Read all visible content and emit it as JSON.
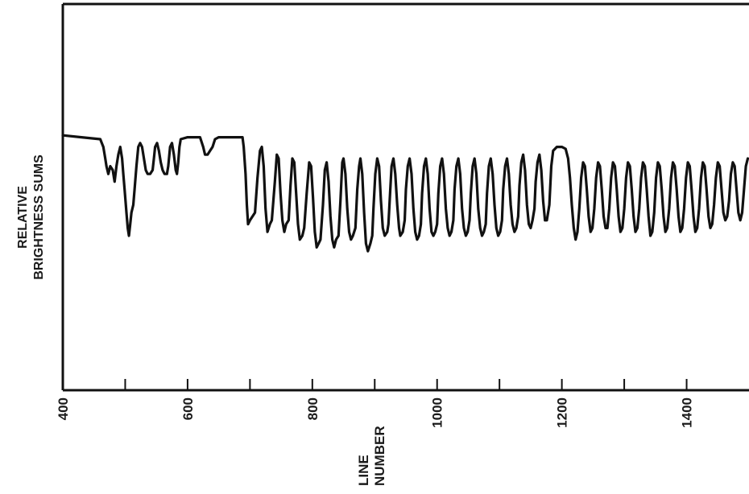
{
  "chart_data": {
    "type": "line",
    "title": "",
    "xlabel_lines": [
      "LINE",
      "NUMBER"
    ],
    "ylabel_lines": [
      "RELATIVE",
      "BRIGHTNESS SUMS"
    ],
    "xlim": [
      400,
      1500
    ],
    "ylim": [
      0,
      100
    ],
    "x_ticks": [
      400,
      500,
      600,
      700,
      800,
      900,
      1000,
      1100,
      1200,
      1300,
      1400,
      1500
    ],
    "x_tick_labels": [
      {
        "value": 400,
        "text": "400"
      },
      {
        "value": 600,
        "text": "600"
      },
      {
        "value": 800,
        "text": "800"
      },
      {
        "value": 1000,
        "text": "1000"
      },
      {
        "value": 1200,
        "text": "1200"
      },
      {
        "value": 1400,
        "text": "1400"
      }
    ],
    "y_tick_labels": [],
    "grid": false,
    "line_color": "#111111",
    "series": [
      {
        "points": [
          [
            400,
            66
          ],
          [
            430,
            65.5
          ],
          [
            460,
            65
          ],
          [
            465,
            63
          ],
          [
            468,
            60
          ],
          [
            470,
            58
          ],
          [
            473,
            56
          ],
          [
            476,
            58
          ],
          [
            480,
            57
          ],
          [
            483,
            54
          ],
          [
            486,
            58
          ],
          [
            489,
            61
          ],
          [
            492,
            63
          ],
          [
            495,
            60
          ],
          [
            497,
            56
          ],
          [
            499,
            52
          ],
          [
            502,
            46
          ],
          [
            504,
            42
          ],
          [
            506,
            40
          ],
          [
            508,
            43
          ],
          [
            510,
            46
          ],
          [
            513,
            48
          ],
          [
            515,
            52
          ],
          [
            518,
            58
          ],
          [
            521,
            63
          ],
          [
            524,
            64
          ],
          [
            527,
            63
          ],
          [
            530,
            60
          ],
          [
            533,
            57
          ],
          [
            536,
            56
          ],
          [
            540,
            56
          ],
          [
            544,
            57
          ],
          [
            546,
            60
          ],
          [
            548,
            63
          ],
          [
            551,
            64
          ],
          [
            554,
            62
          ],
          [
            557,
            59
          ],
          [
            560,
            57
          ],
          [
            563,
            56
          ],
          [
            567,
            56
          ],
          [
            569,
            58
          ],
          [
            572,
            63
          ],
          [
            575,
            64
          ],
          [
            578,
            61
          ],
          [
            581,
            57
          ],
          [
            583,
            56
          ],
          [
            585,
            59
          ],
          [
            587,
            63
          ],
          [
            589,
            65
          ],
          [
            600,
            65.5
          ],
          [
            610,
            65.5
          ],
          [
            620,
            65.5
          ],
          [
            625,
            63
          ],
          [
            628,
            61
          ],
          [
            632,
            61
          ],
          [
            636,
            62
          ],
          [
            640,
            63
          ],
          [
            644,
            65
          ],
          [
            650,
            65.5
          ],
          [
            660,
            65.5
          ],
          [
            670,
            65.5
          ],
          [
            688,
            65.5
          ],
          [
            690,
            63
          ],
          [
            693,
            56
          ],
          [
            695,
            48
          ],
          [
            697,
            43
          ],
          [
            700,
            44
          ],
          [
            704,
            45
          ],
          [
            708,
            46
          ],
          [
            712,
            55
          ],
          [
            716,
            62
          ],
          [
            719,
            63
          ],
          [
            722,
            58
          ],
          [
            725,
            47
          ],
          [
            728,
            41
          ],
          [
            732,
            43
          ],
          [
            735,
            44
          ],
          [
            740,
            54
          ],
          [
            743,
            61
          ],
          [
            746,
            60
          ],
          [
            749,
            51
          ],
          [
            752,
            44
          ],
          [
            755,
            41
          ],
          [
            758,
            43
          ],
          [
            762,
            44
          ],
          [
            765,
            53
          ],
          [
            768,
            60
          ],
          [
            771,
            59
          ],
          [
            774,
            51
          ],
          [
            777,
            43
          ],
          [
            780,
            39
          ],
          [
            784,
            40
          ],
          [
            787,
            42
          ],
          [
            791,
            51
          ],
          [
            795,
            59
          ],
          [
            798,
            58
          ],
          [
            801,
            50
          ],
          [
            804,
            41
          ],
          [
            807,
            37
          ],
          [
            810,
            38
          ],
          [
            813,
            39
          ],
          [
            817,
            48
          ],
          [
            820,
            57
          ],
          [
            823,
            59
          ],
          [
            826,
            54
          ],
          [
            829,
            45
          ],
          [
            832,
            39
          ],
          [
            835,
            37
          ],
          [
            838,
            39
          ],
          [
            842,
            40
          ],
          [
            845,
            49
          ],
          [
            848,
            59
          ],
          [
            850,
            60
          ],
          [
            853,
            56
          ],
          [
            856,
            47
          ],
          [
            859,
            41
          ],
          [
            862,
            39
          ],
          [
            865,
            40
          ],
          [
            869,
            42
          ],
          [
            872,
            52
          ],
          [
            875,
            58
          ],
          [
            877,
            60
          ],
          [
            880,
            56
          ],
          [
            883,
            46
          ],
          [
            886,
            38
          ],
          [
            889,
            36
          ],
          [
            893,
            38
          ],
          [
            896,
            40
          ],
          [
            898,
            47
          ],
          [
            901,
            56
          ],
          [
            904,
            60
          ],
          [
            907,
            58
          ],
          [
            910,
            49
          ],
          [
            913,
            42
          ],
          [
            916,
            40
          ],
          [
            920,
            41
          ],
          [
            922,
            43
          ],
          [
            925,
            52
          ],
          [
            927,
            58
          ],
          [
            930,
            60
          ],
          [
            933,
            56
          ],
          [
            936,
            48
          ],
          [
            939,
            42
          ],
          [
            941,
            40
          ],
          [
            945,
            41
          ],
          [
            948,
            44
          ],
          [
            950,
            52
          ],
          [
            953,
            58
          ],
          [
            956,
            60
          ],
          [
            959,
            56
          ],
          [
            962,
            47
          ],
          [
            965,
            41
          ],
          [
            968,
            39
          ],
          [
            971,
            40
          ],
          [
            974,
            43
          ],
          [
            976,
            51
          ],
          [
            979,
            58
          ],
          [
            982,
            60
          ],
          [
            985,
            56
          ],
          [
            988,
            47
          ],
          [
            991,
            41
          ],
          [
            994,
            40
          ],
          [
            997,
            41
          ],
          [
            1000,
            43
          ],
          [
            1002,
            51
          ],
          [
            1005,
            58
          ],
          [
            1008,
            60
          ],
          [
            1011,
            56
          ],
          [
            1014,
            47
          ],
          [
            1017,
            42
          ],
          [
            1020,
            40
          ],
          [
            1023,
            41
          ],
          [
            1026,
            44
          ],
          [
            1028,
            52
          ],
          [
            1031,
            58
          ],
          [
            1034,
            60
          ],
          [
            1037,
            56
          ],
          [
            1040,
            47
          ],
          [
            1043,
            42
          ],
          [
            1046,
            40
          ],
          [
            1049,
            41
          ],
          [
            1052,
            44
          ],
          [
            1054,
            51
          ],
          [
            1057,
            58
          ],
          [
            1060,
            60
          ],
          [
            1063,
            56
          ],
          [
            1066,
            47
          ],
          [
            1069,
            42
          ],
          [
            1072,
            40
          ],
          [
            1075,
            41
          ],
          [
            1078,
            43
          ],
          [
            1080,
            51
          ],
          [
            1083,
            58
          ],
          [
            1086,
            60
          ],
          [
            1089,
            56
          ],
          [
            1092,
            48
          ],
          [
            1095,
            42
          ],
          [
            1098,
            40
          ],
          [
            1101,
            41
          ],
          [
            1104,
            44
          ],
          [
            1106,
            52
          ],
          [
            1109,
            58
          ],
          [
            1112,
            60
          ],
          [
            1115,
            56
          ],
          [
            1118,
            48
          ],
          [
            1121,
            43
          ],
          [
            1124,
            41
          ],
          [
            1127,
            42
          ],
          [
            1130,
            45
          ],
          [
            1132,
            53
          ],
          [
            1135,
            59
          ],
          [
            1138,
            61
          ],
          [
            1141,
            57
          ],
          [
            1144,
            48
          ],
          [
            1147,
            43
          ],
          [
            1150,
            42
          ],
          [
            1153,
            44
          ],
          [
            1156,
            47
          ],
          [
            1158,
            54
          ],
          [
            1161,
            59
          ],
          [
            1164,
            61
          ],
          [
            1167,
            57
          ],
          [
            1170,
            49
          ],
          [
            1173,
            44
          ],
          [
            1176,
            44
          ],
          [
            1180,
            48
          ],
          [
            1183,
            58
          ],
          [
            1186,
            62
          ],
          [
            1192,
            63
          ],
          [
            1200,
            63
          ],
          [
            1206,
            62.5
          ],
          [
            1210,
            60
          ],
          [
            1213,
            55
          ],
          [
            1216,
            48
          ],
          [
            1219,
            42
          ],
          [
            1222,
            39
          ],
          [
            1225,
            41
          ],
          [
            1228,
            47
          ],
          [
            1231,
            55
          ],
          [
            1234,
            59
          ],
          [
            1237,
            58
          ],
          [
            1240,
            52
          ],
          [
            1243,
            45
          ],
          [
            1246,
            41
          ],
          [
            1249,
            42
          ],
          [
            1252,
            47
          ],
          [
            1255,
            55
          ],
          [
            1258,
            59
          ],
          [
            1261,
            58
          ],
          [
            1264,
            52
          ],
          [
            1267,
            45
          ],
          [
            1270,
            42
          ],
          [
            1273,
            42
          ],
          [
            1276,
            47
          ],
          [
            1279,
            55
          ],
          [
            1282,
            59
          ],
          [
            1285,
            58
          ],
          [
            1288,
            52
          ],
          [
            1291,
            45
          ],
          [
            1294,
            41
          ],
          [
            1297,
            42
          ],
          [
            1300,
            47
          ],
          [
            1303,
            55
          ],
          [
            1306,
            59
          ],
          [
            1309,
            58
          ],
          [
            1312,
            52
          ],
          [
            1315,
            45
          ],
          [
            1318,
            41
          ],
          [
            1321,
            42
          ],
          [
            1324,
            47
          ],
          [
            1327,
            55
          ],
          [
            1330,
            59
          ],
          [
            1333,
            58
          ],
          [
            1336,
            52
          ],
          [
            1339,
            45
          ],
          [
            1342,
            40
          ],
          [
            1345,
            41
          ],
          [
            1348,
            46
          ],
          [
            1351,
            55
          ],
          [
            1354,
            59
          ],
          [
            1357,
            58
          ],
          [
            1360,
            52
          ],
          [
            1363,
            45
          ],
          [
            1366,
            41
          ],
          [
            1369,
            42
          ],
          [
            1372,
            47
          ],
          [
            1375,
            55
          ],
          [
            1378,
            59
          ],
          [
            1381,
            58
          ],
          [
            1384,
            52
          ],
          [
            1387,
            45
          ],
          [
            1390,
            41
          ],
          [
            1393,
            42
          ],
          [
            1396,
            47
          ],
          [
            1399,
            55
          ],
          [
            1402,
            59
          ],
          [
            1405,
            58
          ],
          [
            1408,
            52
          ],
          [
            1411,
            45
          ],
          [
            1414,
            41
          ],
          [
            1417,
            42
          ],
          [
            1420,
            47
          ],
          [
            1423,
            55
          ],
          [
            1426,
            59
          ],
          [
            1429,
            58
          ],
          [
            1432,
            52
          ],
          [
            1435,
            45
          ],
          [
            1438,
            42
          ],
          [
            1441,
            43
          ],
          [
            1444,
            48
          ],
          [
            1447,
            55
          ],
          [
            1450,
            59
          ],
          [
            1453,
            58
          ],
          [
            1456,
            52
          ],
          [
            1459,
            46
          ],
          [
            1462,
            44
          ],
          [
            1465,
            45
          ],
          [
            1468,
            49
          ],
          [
            1471,
            56
          ],
          [
            1474,
            59
          ],
          [
            1477,
            58
          ],
          [
            1480,
            52
          ],
          [
            1483,
            46
          ],
          [
            1486,
            44
          ],
          [
            1489,
            46
          ],
          [
            1492,
            52
          ],
          [
            1495,
            58
          ],
          [
            1498,
            60
          ]
        ]
      }
    ]
  }
}
